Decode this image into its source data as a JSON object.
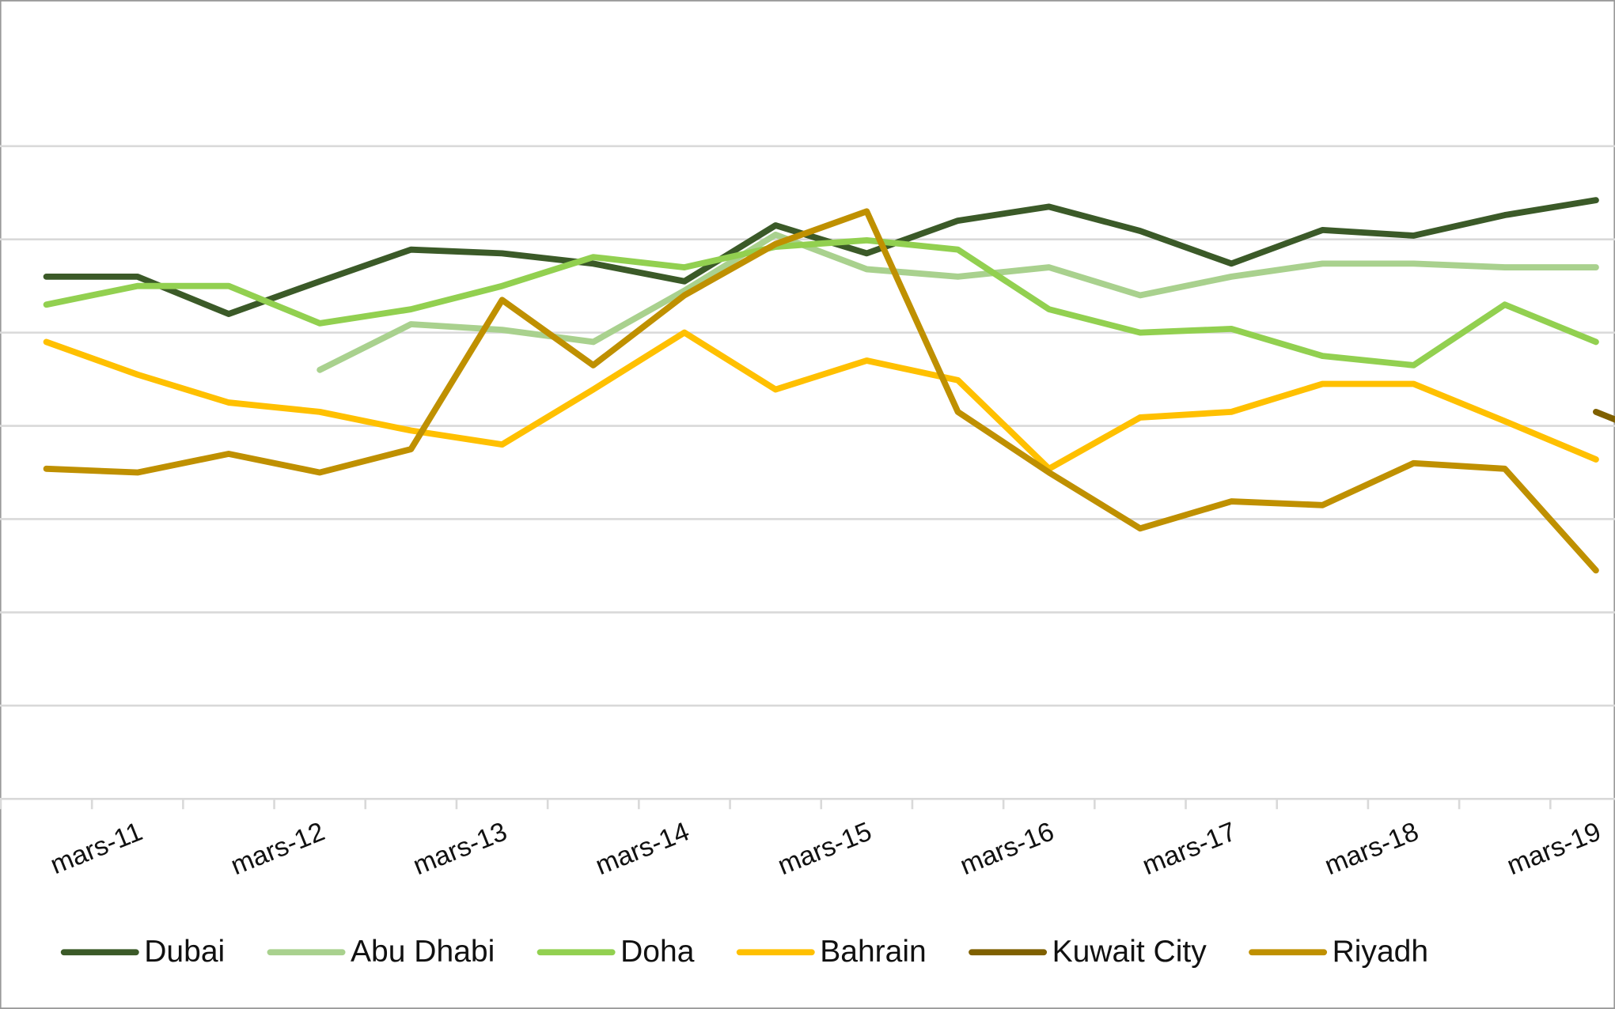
{
  "chart_data": {
    "type": "line",
    "categories": [
      null,
      "mars-11",
      null,
      "mars-12",
      null,
      "mars-13",
      null,
      "mars-14",
      null,
      "mars-15",
      null,
      "mars-16",
      null,
      "mars-17",
      null,
      "mars-18",
      null,
      "mars-19"
    ],
    "series": [
      {
        "name": "Dubai",
        "color": "#3b5a28",
        "values": [
          5.6,
          5.6,
          5.2,
          5.55,
          5.89,
          5.85,
          5.74,
          5.55,
          6.15,
          5.85,
          6.2,
          6.35,
          6.09,
          5.74,
          6.1,
          6.04,
          6.26,
          6.42
        ]
      },
      {
        "name": "Abu Dhabi",
        "color": "#a9d18e",
        "values": [
          null,
          null,
          null,
          4.6,
          5.09,
          5.03,
          4.9,
          5.45,
          6.05,
          5.68,
          5.6,
          5.7,
          5.4,
          5.6,
          5.74,
          5.74,
          5.7,
          5.7
        ]
      },
      {
        "name": "Doha",
        "color": "#92d050",
        "values": [
          5.3,
          5.5,
          5.5,
          5.1,
          5.25,
          5.5,
          5.81,
          5.7,
          5.92,
          5.99,
          5.89,
          5.25,
          5.0,
          5.04,
          4.75,
          4.65,
          5.3,
          4.9
        ]
      },
      {
        "name": "Bahrain",
        "color": "#ffc000",
        "values": [
          4.9,
          4.55,
          4.25,
          4.15,
          3.95,
          3.8,
          4.39,
          5.0,
          4.39,
          4.7,
          4.49,
          3.54,
          4.09,
          4.15,
          4.45,
          4.45,
          4.05,
          3.64
        ]
      },
      {
        "name": "Kuwait City",
        "color": "#7f6000",
        "values": [
          null,
          null,
          null,
          null,
          null,
          null,
          null,
          null,
          null,
          null,
          null,
          null,
          null,
          null,
          null,
          null,
          null,
          4.15
        ]
      },
      {
        "name": "Riyadh",
        "color": "#bf9000",
        "values": [
          3.54,
          3.5,
          3.7,
          3.5,
          3.75,
          5.35,
          4.65,
          5.4,
          5.95,
          6.3,
          4.15,
          3.5,
          2.9,
          3.19,
          3.15,
          3.6,
          3.54,
          2.45
        ]
      }
    ],
    "ylim": [
      0,
      8.5
    ],
    "yticks": [
      0,
      1,
      2,
      3,
      4,
      5,
      6,
      7
    ],
    "grid": true,
    "legend": "bottom"
  }
}
